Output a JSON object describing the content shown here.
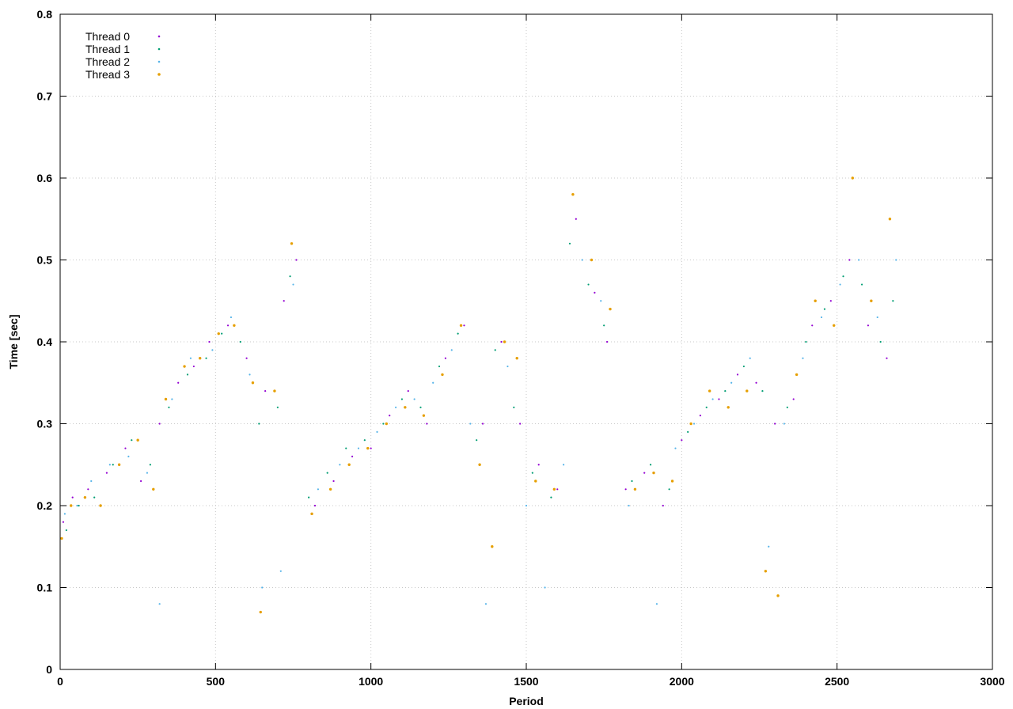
{
  "chart_data": {
    "type": "scatter",
    "title": "",
    "xlabel": "Period",
    "ylabel": "Time [sec]",
    "xlim": [
      0,
      3000
    ],
    "ylim": [
      0,
      0.8
    ],
    "x_ticks": [
      0,
      500,
      1000,
      1500,
      2000,
      2500,
      3000
    ],
    "y_ticks": [
      0,
      0.1,
      0.2,
      0.3,
      0.4,
      0.5,
      0.6,
      0.7,
      0.8
    ],
    "grid": true,
    "legend_position": "top-left",
    "series": [
      {
        "name": "Thread 0",
        "color": "#9400d3",
        "marker": "dot",
        "points": [
          [
            10,
            0.18
          ],
          [
            40,
            0.21
          ],
          [
            90,
            0.22
          ],
          [
            150,
            0.24
          ],
          [
            210,
            0.27
          ],
          [
            260,
            0.23
          ],
          [
            320,
            0.3
          ],
          [
            380,
            0.35
          ],
          [
            430,
            0.37
          ],
          [
            480,
            0.4
          ],
          [
            540,
            0.42
          ],
          [
            600,
            0.38
          ],
          [
            660,
            0.34
          ],
          [
            720,
            0.45
          ],
          [
            760,
            0.5
          ],
          [
            820,
            0.2
          ],
          [
            880,
            0.23
          ],
          [
            940,
            0.26
          ],
          [
            1000,
            0.27
          ],
          [
            1060,
            0.31
          ],
          [
            1120,
            0.34
          ],
          [
            1180,
            0.3
          ],
          [
            1240,
            0.38
          ],
          [
            1300,
            0.42
          ],
          [
            1360,
            0.3
          ],
          [
            1420,
            0.4
          ],
          [
            1480,
            0.3
          ],
          [
            1540,
            0.25
          ],
          [
            1600,
            0.22
          ],
          [
            1660,
            0.55
          ],
          [
            1720,
            0.46
          ],
          [
            1760,
            0.4
          ],
          [
            1820,
            0.22
          ],
          [
            1880,
            0.24
          ],
          [
            1940,
            0.2
          ],
          [
            2000,
            0.28
          ],
          [
            2060,
            0.31
          ],
          [
            2120,
            0.33
          ],
          [
            2180,
            0.36
          ],
          [
            2240,
            0.35
          ],
          [
            2300,
            0.3
          ],
          [
            2360,
            0.33
          ],
          [
            2420,
            0.42
          ],
          [
            2480,
            0.45
          ],
          [
            2540,
            0.5
          ],
          [
            2600,
            0.42
          ],
          [
            2660,
            0.38
          ]
        ]
      },
      {
        "name": "Thread 1",
        "color": "#009e73",
        "marker": "dot",
        "points": [
          [
            20,
            0.17
          ],
          [
            60,
            0.2
          ],
          [
            110,
            0.21
          ],
          [
            170,
            0.25
          ],
          [
            230,
            0.28
          ],
          [
            290,
            0.25
          ],
          [
            350,
            0.32
          ],
          [
            410,
            0.36
          ],
          [
            470,
            0.38
          ],
          [
            520,
            0.41
          ],
          [
            580,
            0.4
          ],
          [
            640,
            0.3
          ],
          [
            700,
            0.32
          ],
          [
            740,
            0.48
          ],
          [
            800,
            0.21
          ],
          [
            860,
            0.24
          ],
          [
            920,
            0.27
          ],
          [
            980,
            0.28
          ],
          [
            1040,
            0.3
          ],
          [
            1100,
            0.33
          ],
          [
            1160,
            0.32
          ],
          [
            1220,
            0.37
          ],
          [
            1280,
            0.41
          ],
          [
            1340,
            0.28
          ],
          [
            1400,
            0.39
          ],
          [
            1460,
            0.32
          ],
          [
            1520,
            0.24
          ],
          [
            1580,
            0.21
          ],
          [
            1640,
            0.52
          ],
          [
            1700,
            0.47
          ],
          [
            1750,
            0.42
          ],
          [
            1840,
            0.23
          ],
          [
            1900,
            0.25
          ],
          [
            1960,
            0.22
          ],
          [
            2020,
            0.29
          ],
          [
            2080,
            0.32
          ],
          [
            2140,
            0.34
          ],
          [
            2200,
            0.37
          ],
          [
            2260,
            0.34
          ],
          [
            2340,
            0.32
          ],
          [
            2400,
            0.4
          ],
          [
            2460,
            0.44
          ],
          [
            2520,
            0.48
          ],
          [
            2580,
            0.47
          ],
          [
            2640,
            0.4
          ],
          [
            2680,
            0.45
          ]
        ]
      },
      {
        "name": "Thread 2",
        "color": "#56b4e9",
        "marker": "dot",
        "points": [
          [
            15,
            0.19
          ],
          [
            55,
            0.2
          ],
          [
            100,
            0.23
          ],
          [
            160,
            0.25
          ],
          [
            220,
            0.26
          ],
          [
            280,
            0.24
          ],
          [
            320,
            0.08
          ],
          [
            360,
            0.33
          ],
          [
            420,
            0.38
          ],
          [
            490,
            0.39
          ],
          [
            550,
            0.43
          ],
          [
            610,
            0.36
          ],
          [
            650,
            0.1
          ],
          [
            710,
            0.12
          ],
          [
            750,
            0.47
          ],
          [
            830,
            0.22
          ],
          [
            900,
            0.25
          ],
          [
            960,
            0.27
          ],
          [
            1020,
            0.29
          ],
          [
            1080,
            0.32
          ],
          [
            1140,
            0.33
          ],
          [
            1200,
            0.35
          ],
          [
            1260,
            0.39
          ],
          [
            1320,
            0.3
          ],
          [
            1370,
            0.08
          ],
          [
            1440,
            0.37
          ],
          [
            1500,
            0.2
          ],
          [
            1560,
            0.1
          ],
          [
            1620,
            0.25
          ],
          [
            1680,
            0.5
          ],
          [
            1740,
            0.45
          ],
          [
            1830,
            0.2
          ],
          [
            1920,
            0.08
          ],
          [
            1980,
            0.27
          ],
          [
            2040,
            0.3
          ],
          [
            2100,
            0.33
          ],
          [
            2160,
            0.35
          ],
          [
            2220,
            0.38
          ],
          [
            2280,
            0.15
          ],
          [
            2330,
            0.3
          ],
          [
            2390,
            0.38
          ],
          [
            2450,
            0.43
          ],
          [
            2510,
            0.47
          ],
          [
            2570,
            0.5
          ],
          [
            2630,
            0.43
          ],
          [
            2690,
            0.5
          ]
        ]
      },
      {
        "name": "Thread 3",
        "color": "#e69f00",
        "marker": "dot",
        "points": [
          [
            5,
            0.16
          ],
          [
            35,
            0.2
          ],
          [
            80,
            0.21
          ],
          [
            130,
            0.2
          ],
          [
            190,
            0.25
          ],
          [
            250,
            0.28
          ],
          [
            300,
            0.22
          ],
          [
            340,
            0.33
          ],
          [
            400,
            0.37
          ],
          [
            450,
            0.38
          ],
          [
            510,
            0.41
          ],
          [
            560,
            0.42
          ],
          [
            620,
            0.35
          ],
          [
            645,
            0.07
          ],
          [
            690,
            0.34
          ],
          [
            745,
            0.52
          ],
          [
            810,
            0.19
          ],
          [
            870,
            0.22
          ],
          [
            930,
            0.25
          ],
          [
            990,
            0.27
          ],
          [
            1050,
            0.3
          ],
          [
            1110,
            0.32
          ],
          [
            1170,
            0.31
          ],
          [
            1230,
            0.36
          ],
          [
            1290,
            0.42
          ],
          [
            1350,
            0.25
          ],
          [
            1390,
            0.15
          ],
          [
            1430,
            0.4
          ],
          [
            1470,
            0.38
          ],
          [
            1530,
            0.23
          ],
          [
            1590,
            0.22
          ],
          [
            1650,
            0.58
          ],
          [
            1710,
            0.5
          ],
          [
            1770,
            0.44
          ],
          [
            1850,
            0.22
          ],
          [
            1910,
            0.24
          ],
          [
            1970,
            0.23
          ],
          [
            2030,
            0.3
          ],
          [
            2090,
            0.34
          ],
          [
            2150,
            0.32
          ],
          [
            2210,
            0.34
          ],
          [
            2270,
            0.12
          ],
          [
            2310,
            0.09
          ],
          [
            2370,
            0.36
          ],
          [
            2430,
            0.45
          ],
          [
            2490,
            0.42
          ],
          [
            2550,
            0.6
          ],
          [
            2610,
            0.45
          ],
          [
            2670,
            0.55
          ]
        ]
      }
    ]
  }
}
